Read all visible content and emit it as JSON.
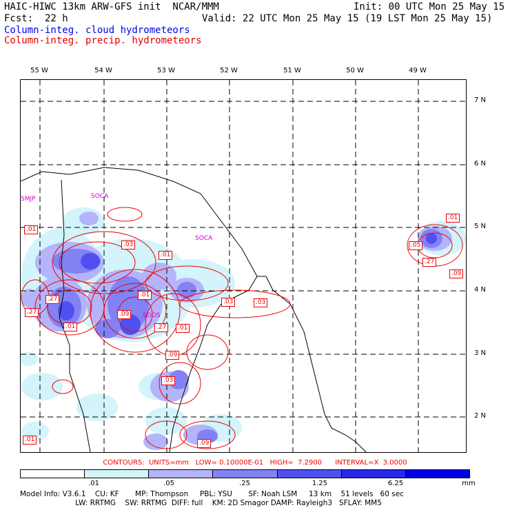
{
  "header": {
    "line1_left": "HAIC-HIWC 13km ARW-GFS init  NCAR/MMM",
    "line1_right": "Init: 00 UTC Mon 25 May 15",
    "fcst": "Fcst:  22 h",
    "valid": "Valid: 22 UTC Mon 25 May 15 (19 LST Mon 25 May 15)",
    "field1": "Column-integ. cloud hydrometeors",
    "field2": "Column-integ. precip. hydrometeors"
  },
  "colors": {
    "cloud_title": "#0000ee",
    "precip_title": "#e00000",
    "station": "#cc00cc"
  },
  "axes": {
    "lon_labels": [
      "55 W",
      "54 W",
      "53 W",
      "52 W",
      "51 W",
      "50 W",
      "49 W"
    ],
    "lat_labels": [
      "7 N",
      "6 N",
      "5 N",
      "4 N",
      "3 N",
      "2 N"
    ]
  },
  "stations": [
    "SMJP",
    "SOCA",
    "SOCA",
    "SOOS"
  ],
  "contour_labels": [
    ".01",
    ".27",
    ".03",
    ".01",
    ".27",
    ".03",
    ".01",
    ".09",
    ".27",
    ".01",
    ".03",
    ".09",
    ".03",
    ".01",
    ".09",
    ".01",
    ".05",
    ".27",
    ".09",
    ".01"
  ],
  "contours_line": "CONTOURS:  UNITS=mm   LOW= 0.10000E-01   HIGH=  7.2900      INTERVAL=X  3.0000",
  "colorbar": {
    "ticks": [
      ".01",
      ".05",
      ".25",
      "1.25",
      "6.25",
      "mm"
    ],
    "colors": [
      "#ffffff",
      "#d2f4fa",
      "#b4b4fa",
      "#8282f5",
      "#5050f0",
      "#2828eb",
      "#0000e6"
    ]
  },
  "model_info": {
    "line1": "Model Info: V3.6.1    CU: KF       MP: Thompson     PBL: YSU       SF: Noah LSM     13 km    51 levels   60 sec",
    "line2": "                        LW: RRTMG    SW: RRTMG  DIFF: full    KM: 2D Smagor DAMP: Rayleigh3   SFLAY: MM5"
  }
}
